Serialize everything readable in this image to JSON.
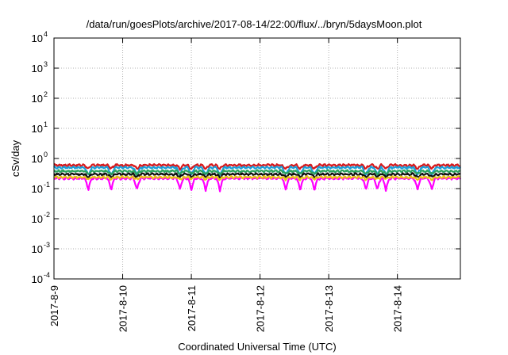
{
  "chart_data": {
    "type": "line",
    "title": "/data/run/goesPlots/archive/2017-08-14/22:00/flux/../bryn/5daysMoon.plot",
    "xlabel": "Coordinated Universal Time (UTC)",
    "ylabel": "cSv/day",
    "y_scale": "log",
    "ylim": [
      0.0001,
      10000
    ],
    "y_ticks": [
      {
        "base": "10",
        "exp": "4"
      },
      {
        "base": "10",
        "exp": "3"
      },
      {
        "base": "10",
        "exp": "2"
      },
      {
        "base": "10",
        "exp": "1"
      },
      {
        "base": "10",
        "exp": "0"
      },
      {
        "base": "10",
        "exp": "-1"
      },
      {
        "base": "10",
        "exp": "-2"
      },
      {
        "base": "10",
        "exp": "-3"
      },
      {
        "base": "10",
        "exp": "-4"
      }
    ],
    "xlim": [
      "2017-08-09T00:00",
      "2017-08-14T22:00"
    ],
    "x_ticks": [
      "2017-8-9",
      "2017-8-10",
      "2017-8-11",
      "2017-8-12",
      "2017-8-13",
      "2017-8-14"
    ],
    "grid": true,
    "series": [
      {
        "color": "#d7191c",
        "level": 0.6,
        "dip_depth": 0.25
      },
      {
        "color": "#1a9fd9",
        "level": 0.5,
        "dip_depth": 0.45
      },
      {
        "color": "#2ca25f",
        "level": 0.38,
        "dip_depth": 0.2
      },
      {
        "color": "#111111",
        "level": 0.3,
        "dip_depth": 0.2
      },
      {
        "color": "#ff00ff",
        "level": 0.22,
        "dip_depth": 0.6
      },
      {
        "color": "#e8c21a",
        "level": 0.24,
        "dip_depth": 0.15
      }
    ],
    "dips": [
      "2017-08-09T12:00",
      "2017-08-09T20:00",
      "2017-08-10T05:00",
      "2017-08-10T20:00",
      "2017-08-11T00:00",
      "2017-08-11T05:00",
      "2017-08-11T10:00",
      "2017-08-12T09:00",
      "2017-08-12T14:00",
      "2017-08-12T19:00",
      "2017-08-13T13:00",
      "2017-08-13T17:00",
      "2017-08-13T20:00",
      "2017-08-14T07:00",
      "2017-08-14T12:00"
    ]
  }
}
